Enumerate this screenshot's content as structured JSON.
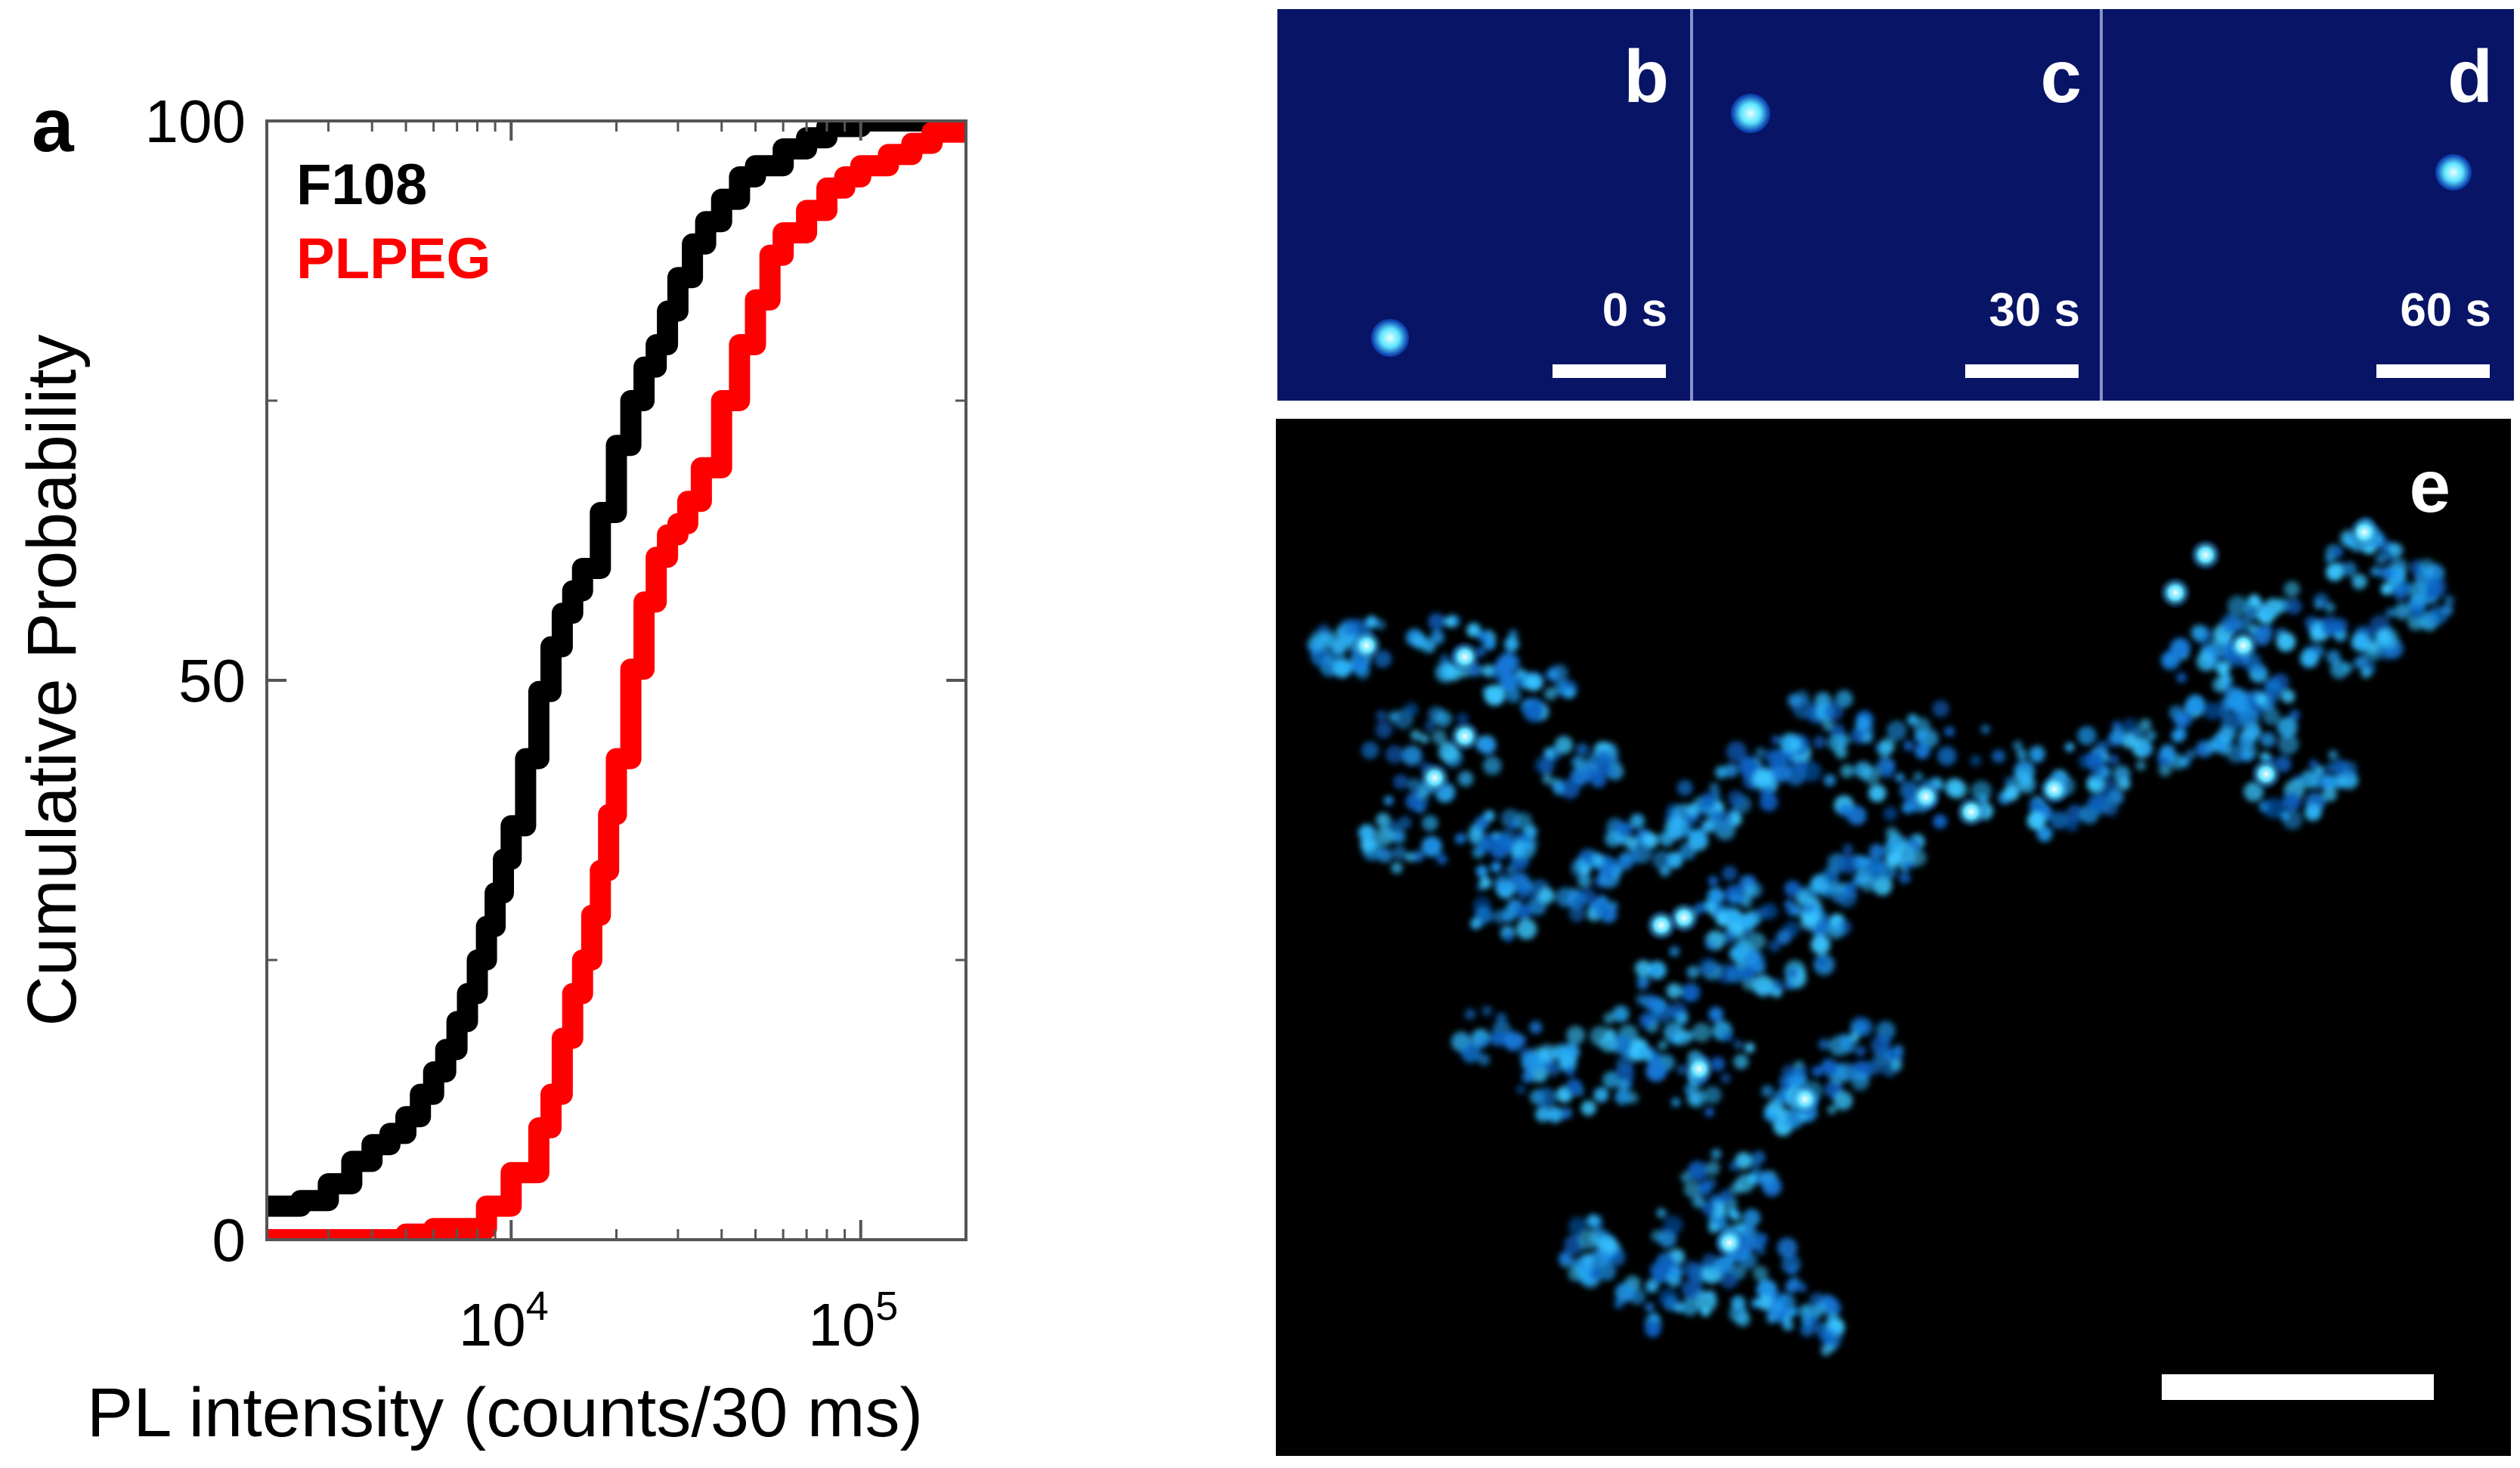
{
  "panel_a": {
    "label": "a",
    "legend": [
      {
        "name": "F108",
        "color": "#000000"
      },
      {
        "name": "PLPEG",
        "color": "#ff0000"
      }
    ]
  },
  "chart_data": {
    "type": "line",
    "title": "",
    "xlabel": "PL intensity (counts/30 ms)",
    "ylabel": "Cumulative Probability",
    "xscale": "log",
    "xlim": [
      2000,
      200000
    ],
    "ylim": [
      0,
      100
    ],
    "xticks": [
      {
        "base": "10",
        "exp": "4",
        "value": 10000
      },
      {
        "base": "10",
        "exp": "5",
        "value": 100000
      }
    ],
    "yticks": [
      {
        "label": "0",
        "value": 0
      },
      {
        "label": "50",
        "value": 50
      },
      {
        "label": "100",
        "value": 100
      }
    ],
    "grid": false,
    "legend_position": "top-left",
    "series": [
      {
        "name": "F108",
        "color": "#000000",
        "x": [
          2000,
          2500,
          3000,
          3500,
          4000,
          4500,
          5000,
          5500,
          6000,
          6500,
          7000,
          7500,
          8000,
          8500,
          9000,
          9500,
          10000,
          11000,
          12000,
          13000,
          14000,
          15000,
          16000,
          18000,
          20000,
          22000,
          24000,
          26000,
          28000,
          30000,
          33000,
          36000,
          40000,
          45000,
          50000,
          60000,
          70000,
          80000,
          100000,
          120000,
          150000,
          200000
        ],
        "y": [
          3,
          3.5,
          5,
          7,
          8.5,
          9.5,
          11,
          13,
          15,
          17,
          19.5,
          22,
          25,
          28,
          31,
          34,
          37,
          43,
          49,
          53,
          56,
          58,
          60,
          65,
          71,
          75,
          78,
          80,
          83,
          86,
          89,
          91,
          93,
          95,
          96,
          97.5,
          98.5,
          99.5,
          100,
          100,
          100,
          100
        ]
      },
      {
        "name": "PLPEG",
        "color": "#ff0000",
        "x": [
          2000,
          4000,
          5000,
          6000,
          7000,
          7800,
          8500,
          10000,
          12000,
          13000,
          14000,
          15000,
          16000,
          17000,
          18000,
          19000,
          20000,
          22000,
          24000,
          26000,
          28000,
          30000,
          32000,
          35000,
          40000,
          45000,
          50000,
          55000,
          60000,
          70000,
          80000,
          90000,
          100000,
          120000,
          140000,
          160000,
          200000
        ],
        "y": [
          0,
          0,
          0.5,
          1,
          1,
          1,
          3,
          6,
          10,
          13,
          18,
          22,
          25,
          29,
          33,
          38,
          43,
          51,
          57,
          61,
          63,
          64,
          66,
          69,
          75,
          80,
          84,
          88,
          90,
          92,
          94,
          95,
          96,
          97,
          98,
          99,
          100
        ]
      }
    ]
  },
  "frames": [
    {
      "label": "b",
      "time": "0 s"
    },
    {
      "label": "c",
      "time": "30 s"
    },
    {
      "label": "d",
      "time": "60 s"
    }
  ],
  "panel_e": {
    "label": "e"
  }
}
